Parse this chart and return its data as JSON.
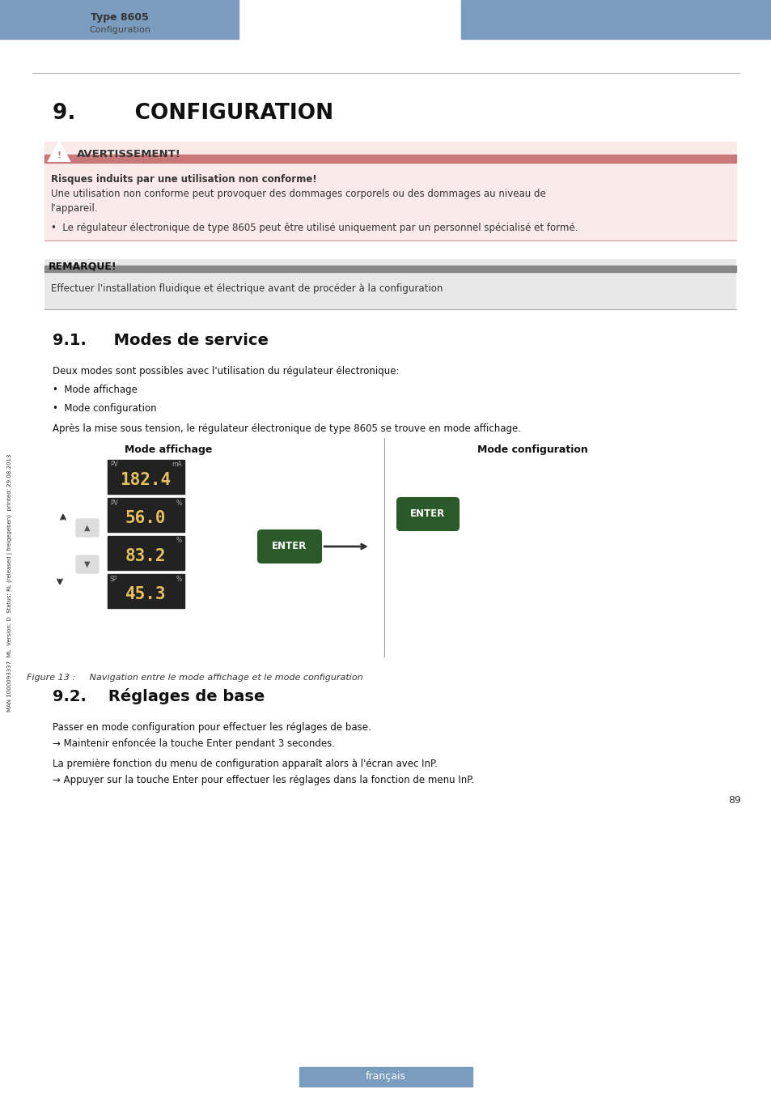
{
  "header_color": "#7a9cbf",
  "header_left_text": "Type 8605",
  "header_sub_text": "Configuration",
  "page_number": "89",
  "footer_text": "français",
  "title": "9.        CONFIGURATION",
  "warning_title": "AVERTISSEMENT!",
  "warning_bar_color": "#c87878",
  "warning_bg_color": "#faeaea",
  "warning_bold": "Risques induits par une utilisation non conforme!",
  "warning_text1": "Une utilisation non conforme peut provoquer des dommages corporels ou des dommages au niveau de\nl'appareil.",
  "warning_text2": "•  Le régulateur électronique de type 8605 peut être utilisé uniquement par un personnel spécialisé et formé.",
  "remarque_title": "REMARQUE!",
  "remarque_bar_color": "#888888",
  "remarque_bg_color": "#e8e8e8",
  "remarque_text": "Effectuer l'installation fluidique et électrique avant de procéder à la configuration",
  "section91_title": "9.1.     Modes de service",
  "section91_text1": "Deux modes sont possibles avec l'utilisation du régulateur électronique:",
  "section91_bullet1": "•  Mode affichage",
  "section91_bullet2": "•  Mode configuration",
  "section91_text2": "Après la mise sous tension, le régulateur électronique de type 8605 se trouve en mode affichage.",
  "fig_label_left": "Mode affichage",
  "fig_label_right": "Mode configuration",
  "fig_caption": "Figure 13 :     Navigation entre le mode affichage et le mode configuration",
  "section92_title": "9.2.    Réglages de base",
  "section92_text1": "Passer en mode configuration pour effectuer les réglages de base.",
  "section92_arrow1": "→ Maintenir enfoncée la touche Enter pendant 3 secondes.",
  "section92_text2": "La première fonction du menu de configuration apparaît alors à l'écran avec InP.",
  "section92_arrow2": "→ Appuyer sur la touche Enter pour effectuer les réglages dans la fonction de menu InP.",
  "sidebar_text": "MAN 1000093337  ML  Version: D  Status: RL (released | freigegeben)  printed: 29.08.2013",
  "display_values": [
    "182.4",
    "56.0",
    "83.2",
    "45.3"
  ],
  "enter_button_color": "#2a5a2a",
  "display_bg": "#1a1a1a",
  "display_text_color": "#e8c060"
}
